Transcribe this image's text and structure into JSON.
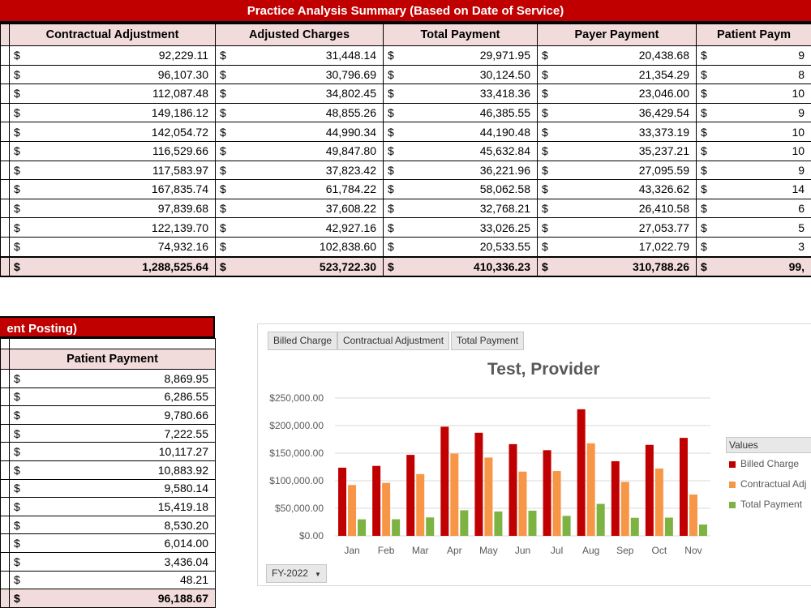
{
  "top_table": {
    "title": "Practice Analysis Summary (Based on Date of Service)",
    "headers": [
      "Contractual Adjustment",
      "Adjusted Charges",
      "Total Payment",
      "Payer Payment",
      "Patient Paym"
    ],
    "currency_symbol": "$",
    "rows": [
      [
        "92,229.11",
        "31,448.14",
        "29,971.95",
        "20,438.68",
        "9"
      ],
      [
        "96,107.30",
        "30,796.69",
        "30,124.50",
        "21,354.29",
        "8"
      ],
      [
        "112,087.48",
        "34,802.45",
        "33,418.36",
        "23,046.00",
        "10"
      ],
      [
        "149,186.12",
        "48,855.26",
        "46,385.55",
        "36,429.54",
        "9"
      ],
      [
        "142,054.72",
        "44,990.34",
        "44,190.48",
        "33,373.19",
        "10"
      ],
      [
        "116,529.66",
        "49,847.80",
        "45,632.84",
        "35,237.21",
        "10"
      ],
      [
        "117,583.97",
        "37,823.42",
        "36,221.96",
        "27,095.59",
        "9"
      ],
      [
        "167,835.74",
        "61,784.22",
        "58,062.58",
        "43,326.62",
        "14"
      ],
      [
        "97,839.68",
        "37,608.22",
        "32,768.21",
        "26,410.58",
        "6"
      ],
      [
        "122,139.70",
        "42,927.16",
        "33,026.25",
        "27,053.77",
        "5"
      ],
      [
        "74,932.16",
        "102,838.60",
        "20,533.55",
        "17,022.79",
        "3"
      ]
    ],
    "total": [
      "1,288,525.64",
      "523,722.30",
      "410,336.23",
      "310,788.26",
      "99,"
    ]
  },
  "left_table": {
    "title": "ent Posting)",
    "header": "Patient Payment",
    "currency_symbol": "$",
    "rows": [
      "8,869.95",
      "6,286.55",
      "9,780.66",
      "7,222.55",
      "10,117.27",
      "10,883.92",
      "9,580.14",
      "15,419.18",
      "8,530.20",
      "6,014.00",
      "3,436.04",
      "48.21"
    ],
    "total": "96,188.67"
  },
  "chart": {
    "field_buttons": [
      "Billed Charge",
      "Contractual Adjustment",
      "Total Payment"
    ],
    "filter_label": "FY-2022",
    "legend_title": "Values",
    "colors": {
      "billed": "#c00000",
      "contractual": "#f79646",
      "payment": "#7cb342"
    }
  },
  "chart_data": {
    "type": "bar",
    "title": "Test, Provider",
    "categories": [
      "Jan",
      "Feb",
      "Mar",
      "Apr",
      "May",
      "Jun",
      "Jul",
      "Aug",
      "Sep",
      "Oct",
      "Nov"
    ],
    "series": [
      {
        "name": "Billed Charge",
        "values": [
          123677,
          126904,
          146890,
          198041,
          187045,
          166377,
          155407,
          229620,
          135448,
          165067,
          177771
        ]
      },
      {
        "name": "Contractual Adj",
        "values": [
          92229.11,
          96107.3,
          112087.48,
          149186.12,
          142054.72,
          116529.66,
          117583.97,
          167835.74,
          97839.68,
          122139.7,
          74932.16
        ]
      },
      {
        "name": "Total Payment",
        "values": [
          29971.95,
          30124.5,
          33418.36,
          46385.55,
          44190.48,
          45632.84,
          36221.96,
          58062.58,
          32768.21,
          33026.25,
          20533.55
        ]
      }
    ],
    "y_ticks": [
      "$0.00",
      "$50,000.00",
      "$100,000.00",
      "$150,000.00",
      "$200,000.00",
      "$250,000.00"
    ],
    "ylim": [
      0,
      250000
    ],
    "legend_position": "right",
    "grid": true
  }
}
